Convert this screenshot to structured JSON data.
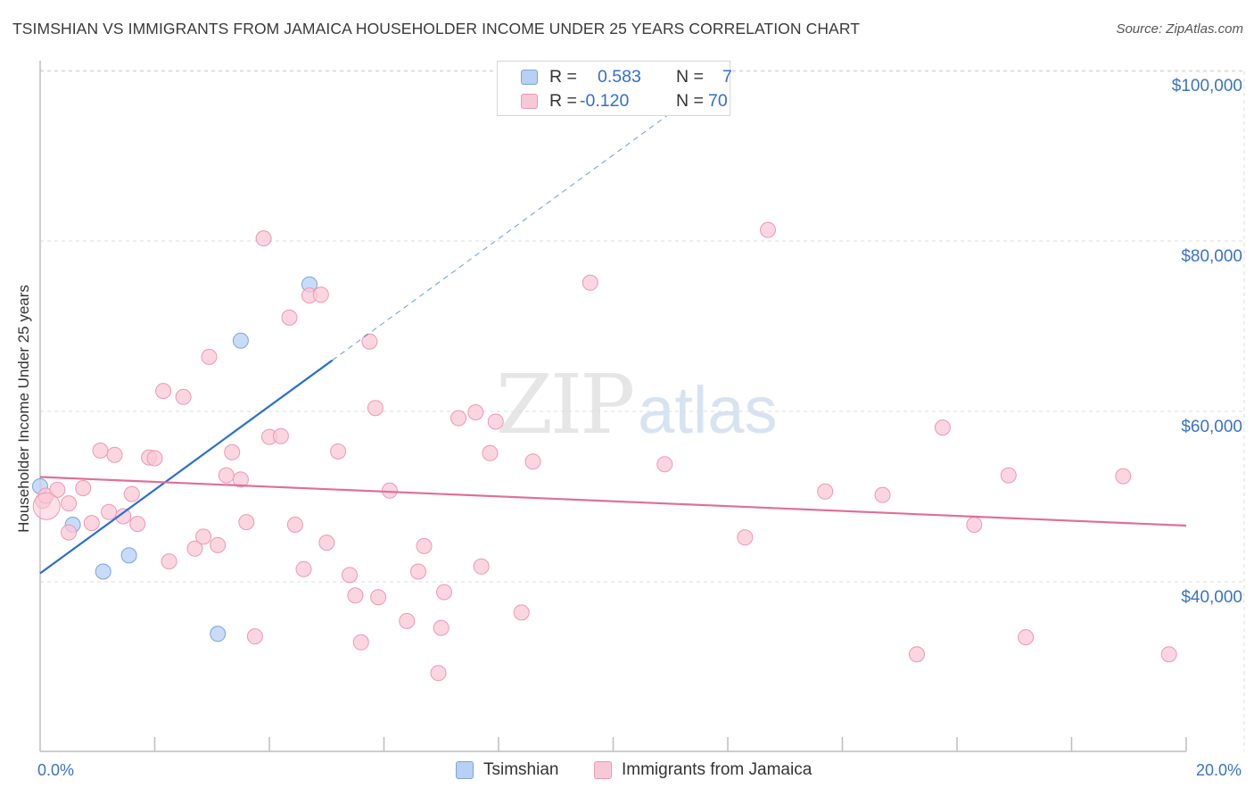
{
  "header": {
    "title": "TSIMSHIAN VS IMMIGRANTS FROM JAMAICA HOUSEHOLDER INCOME UNDER 25 YEARS CORRELATION CHART",
    "source": "Source: ZipAtlas.com"
  },
  "watermark": {
    "zip": "ZIP",
    "atlas": "atlas"
  },
  "stats": {
    "rows": [
      {
        "r_label": "R =",
        "r_value": "0.583",
        "n_label": "N =",
        "n_value": "7",
        "color": "#b7d0f4",
        "border": "#7aa3de"
      },
      {
        "r_label": "R =",
        "r_value": "-0.120",
        "n_label": "N =",
        "n_value": "70",
        "color": "#f9c8d7",
        "border": "#ee97b3"
      }
    ]
  },
  "legend": {
    "items": [
      {
        "label": "Tsimshian",
        "color": "#b7d0f4",
        "border": "#7aa3de"
      },
      {
        "label": "Immigrants from Jamaica",
        "color": "#f9c8d7",
        "border": "#ee97b3"
      }
    ]
  },
  "chart_data": {
    "type": "scatter",
    "title": "TSIMSHIAN VS IMMIGRANTS FROM JAMAICA HOUSEHOLDER INCOME UNDER 25 YEARS CORRELATION CHART",
    "xlabel": "",
    "ylabel": "Householder Income Under 25 years",
    "xlim": [
      0,
      20
    ],
    "ylim": [
      20000,
      104000
    ],
    "x_tick_labels": [
      "0.0%",
      "20.0%"
    ],
    "y_ticks": [
      40000,
      60000,
      80000,
      100000
    ],
    "y_tick_labels": [
      "$40,000",
      "$60,000",
      "$80,000",
      "$100,000"
    ],
    "grid": true,
    "legend_position": "bottom",
    "series": [
      {
        "name": "Tsimshian",
        "color": "#b7d0f4",
        "stroke": "#7aa3de",
        "line_color": "#2b6fd1",
        "r": 0.583,
        "n": 7,
        "trend": {
          "x0": 0,
          "y0": 41000,
          "x1": 5.1,
          "y1": 66000,
          "dash_to_x": 11,
          "dash_to_y": 95000
        },
        "points": [
          [
            0.0,
            51200
          ],
          [
            0.57,
            46700
          ],
          [
            1.1,
            41200
          ],
          [
            1.55,
            43100
          ],
          [
            3.1,
            33900
          ],
          [
            3.5,
            68300
          ],
          [
            4.7,
            74900
          ]
        ]
      },
      {
        "name": "Immigrants from Jamaica",
        "color": "#f9c8d7",
        "stroke": "#ee97b3",
        "line_color": "#e06f98",
        "r": -0.12,
        "n": 70,
        "trend": {
          "x0": 0,
          "y0": 52300,
          "x1": 20,
          "y1": 46600
        },
        "points": [
          [
            0.05,
            49500
          ],
          [
            0.1,
            50100
          ],
          [
            0.3,
            50800
          ],
          [
            0.5,
            49200
          ],
          [
            0.5,
            45800
          ],
          [
            0.75,
            51000
          ],
          [
            0.9,
            46900
          ],
          [
            1.05,
            55400
          ],
          [
            1.2,
            48200
          ],
          [
            1.3,
            54900
          ],
          [
            1.45,
            47700
          ],
          [
            1.6,
            50300
          ],
          [
            1.7,
            46800
          ],
          [
            1.9,
            54600
          ],
          [
            2.0,
            54500
          ],
          [
            2.15,
            62400
          ],
          [
            2.25,
            42400
          ],
          [
            2.5,
            61700
          ],
          [
            2.7,
            43900
          ],
          [
            2.85,
            45300
          ],
          [
            2.95,
            66400
          ],
          [
            3.1,
            44300
          ],
          [
            3.25,
            52500
          ],
          [
            3.35,
            55200
          ],
          [
            3.5,
            52000
          ],
          [
            3.6,
            47000
          ],
          [
            3.75,
            33600
          ],
          [
            3.9,
            80300
          ],
          [
            4.0,
            57000
          ],
          [
            4.2,
            57100
          ],
          [
            4.35,
            71000
          ],
          [
            4.45,
            46700
          ],
          [
            4.6,
            41500
          ],
          [
            4.7,
            73600
          ],
          [
            4.9,
            73700
          ],
          [
            5.0,
            44600
          ],
          [
            5.2,
            55300
          ],
          [
            5.4,
            40800
          ],
          [
            5.5,
            38400
          ],
          [
            5.6,
            32900
          ],
          [
            5.75,
            68200
          ],
          [
            5.85,
            60400
          ],
          [
            5.9,
            38200
          ],
          [
            6.1,
            50700
          ],
          [
            6.4,
            35400
          ],
          [
            6.6,
            41200
          ],
          [
            6.7,
            44200
          ],
          [
            6.95,
            29300
          ],
          [
            7.0,
            34600
          ],
          [
            7.05,
            38800
          ],
          [
            7.3,
            59200
          ],
          [
            7.6,
            59900
          ],
          [
            7.7,
            41800
          ],
          [
            7.85,
            55100
          ],
          [
            7.95,
            58800
          ],
          [
            8.4,
            36400
          ],
          [
            8.6,
            54100
          ],
          [
            9.6,
            75100
          ],
          [
            10.9,
            53800
          ],
          [
            12.3,
            45200
          ],
          [
            12.7,
            81300
          ],
          [
            13.7,
            50600
          ],
          [
            14.7,
            50200
          ],
          [
            15.3,
            31500
          ],
          [
            15.75,
            58100
          ],
          [
            16.3,
            46700
          ],
          [
            16.9,
            52500
          ],
          [
            17.2,
            33500
          ],
          [
            18.9,
            52400
          ],
          [
            19.7,
            31500
          ]
        ]
      }
    ]
  }
}
